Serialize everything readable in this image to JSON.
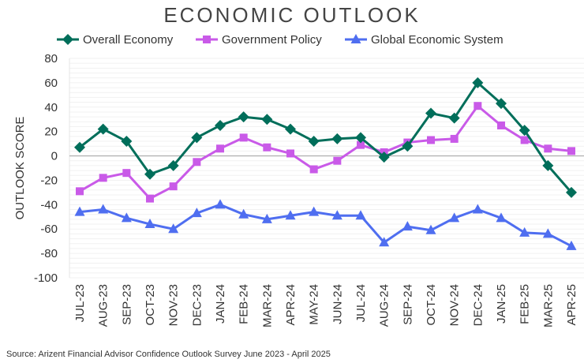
{
  "chart_data": {
    "type": "line",
    "title": "ECONOMIC OUTLOOK",
    "xlabel": "",
    "ylabel": "OUTLOOK SCORE",
    "ylim": [
      -100,
      80
    ],
    "yticks": [
      80,
      60,
      40,
      20,
      0,
      -20,
      -40,
      -60,
      -80,
      -100
    ],
    "grid": true,
    "legend_position": "top",
    "categories": [
      "JUL-23",
      "AUG-23",
      "SEP-23",
      "OCT-23",
      "NOV-23",
      "DEC-23",
      "JAN-24",
      "FEB-24",
      "MAR-24",
      "APR-24",
      "MAY-24",
      "JUN-24",
      "JUL-24",
      "AUG-24",
      "SEP-24",
      "OCT-24",
      "NOV-24",
      "DEC-24",
      "JAN-25",
      "FEB-25",
      "MAR-25",
      "APR-25"
    ],
    "series": [
      {
        "name": "Overall Economy",
        "color": "#006e5a",
        "marker": "diamond",
        "values": [
          7,
          22,
          12,
          -15,
          -8,
          15,
          25,
          32,
          30,
          22,
          12,
          14,
          15,
          -1,
          8,
          35,
          31,
          60,
          43,
          21,
          -8,
          -30
        ]
      },
      {
        "name": "Government Policy",
        "color": "#c95ae8",
        "marker": "square",
        "values": [
          -29,
          -18,
          -14,
          -35,
          -25,
          -5,
          6,
          15,
          7,
          2,
          -11,
          -4,
          9,
          3,
          11,
          13,
          14,
          41,
          25,
          13,
          6,
          4
        ]
      },
      {
        "name": "Global Economic System",
        "color": "#4f6ef0",
        "marker": "triangle",
        "values": [
          -46,
          -44,
          -51,
          -56,
          -60,
          -47,
          -40,
          -48,
          -52,
          -49,
          -46,
          -49,
          -49,
          -71,
          -58,
          -61,
          -51,
          -44,
          -51,
          -63,
          -64,
          -74
        ]
      }
    ],
    "source": "Source: Arizent Financial Advisor Confidence Outlook Survey June 2023 - April 2025"
  }
}
